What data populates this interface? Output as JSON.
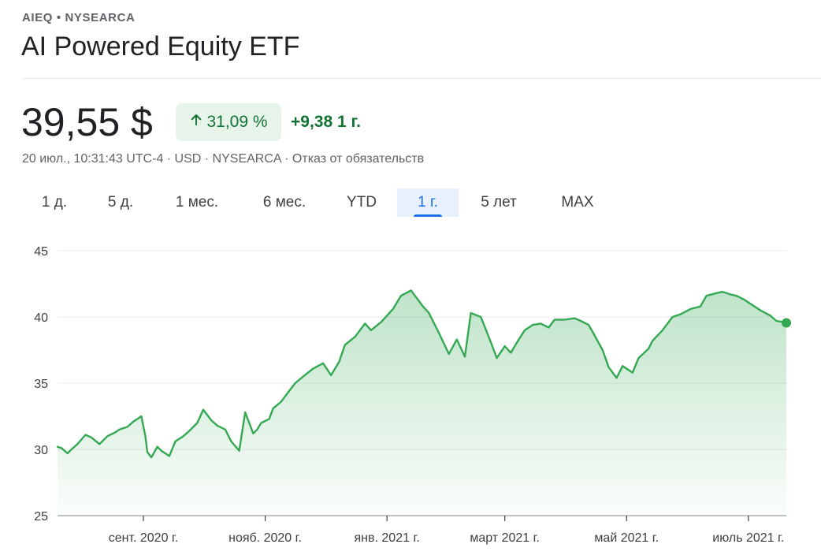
{
  "header": {
    "breadcrumb": "AIEQ • NYSEARCA",
    "title": "AI Powered Equity ETF"
  },
  "quote": {
    "price": "39,55 $",
    "change_percent": "31,09 %",
    "change_abs": "+9,38 1 г.",
    "meta": "20 июл., 10:31:43 UTC-4 · USD · NYSEARCA · Отказ от обязательств"
  },
  "colors": {
    "positive": "#137333",
    "line": "#34a853",
    "active_tab": "#1a73e8"
  },
  "icons": {
    "change_arrow": "arrow-up-icon"
  },
  "tabs": [
    {
      "label": "1 д."
    },
    {
      "label": "5 д."
    },
    {
      "label": "1 мес."
    },
    {
      "label": "6 мес."
    },
    {
      "label": "YTD"
    },
    {
      "label": "1 г.",
      "active": true
    },
    {
      "label": "5 лет"
    },
    {
      "label": "MAX"
    }
  ],
  "chart_data": {
    "type": "area",
    "title": "",
    "xlabel": "",
    "ylabel": "",
    "ylim": [
      25,
      45
    ],
    "y_ticks": [
      25,
      30,
      35,
      40,
      45
    ],
    "x_range": [
      "2020-07-20",
      "2021-07-20"
    ],
    "x_ticks": [
      {
        "date": "2020-09-01",
        "label": "сент. 2020 г."
      },
      {
        "date": "2020-11-01",
        "label": "нояб. 2020 г."
      },
      {
        "date": "2021-01-01",
        "label": "янв. 2021 г."
      },
      {
        "date": "2021-03-01",
        "label": "март 2021 г."
      },
      {
        "date": "2021-05-01",
        "label": "май 2021 г."
      },
      {
        "date": "2021-07-01",
        "label": "июль 2021 г."
      }
    ],
    "grid": true,
    "series": [
      {
        "x": [
          "2020-07-20",
          "2020-07-22",
          "2020-07-25",
          "2020-07-27",
          "2020-07-30",
          "2020-08-03",
          "2020-08-06",
          "2020-08-10",
          "2020-08-14",
          "2020-08-18",
          "2020-08-20",
          "2020-08-24",
          "2020-08-27",
          "2020-08-31",
          "2020-09-02",
          "2020-09-03",
          "2020-09-05",
          "2020-09-08",
          "2020-09-10",
          "2020-09-14",
          "2020-09-17",
          "2020-09-21",
          "2020-09-24",
          "2020-09-28",
          "2020-10-01",
          "2020-10-05",
          "2020-10-08",
          "2020-10-12",
          "2020-10-15",
          "2020-10-19",
          "2020-10-22",
          "2020-10-26",
          "2020-10-28",
          "2020-10-30",
          "2020-11-03",
          "2020-11-05",
          "2020-11-09",
          "2020-11-12",
          "2020-11-16",
          "2020-11-20",
          "2020-11-25",
          "2020-11-30",
          "2020-12-04",
          "2020-12-08",
          "2020-12-11",
          "2020-12-16",
          "2020-12-21",
          "2020-12-24",
          "2020-12-29",
          "2021-01-04",
          "2021-01-08",
          "2021-01-13",
          "2021-01-19",
          "2021-01-22",
          "2021-01-27",
          "2021-02-01",
          "2021-02-05",
          "2021-02-09",
          "2021-02-12",
          "2021-02-17",
          "2021-02-22",
          "2021-02-25",
          "2021-03-01",
          "2021-03-04",
          "2021-03-08",
          "2021-03-11",
          "2021-03-15",
          "2021-03-19",
          "2021-03-23",
          "2021-03-26",
          "2021-03-31",
          "2021-04-05",
          "2021-04-08",
          "2021-04-12",
          "2021-04-15",
          "2021-04-19",
          "2021-04-22",
          "2021-04-26",
          "2021-04-29",
          "2021-05-04",
          "2021-05-07",
          "2021-05-12",
          "2021-05-14",
          "2021-05-19",
          "2021-05-24",
          "2021-05-28",
          "2021-06-02",
          "2021-06-07",
          "2021-06-10",
          "2021-06-15",
          "2021-06-18",
          "2021-06-22",
          "2021-06-25",
          "2021-06-29",
          "2021-07-02",
          "2021-07-07",
          "2021-07-12",
          "2021-07-15",
          "2021-07-19",
          "2021-07-20"
        ],
        "values": [
          30.2,
          30.1,
          29.7,
          30.0,
          30.4,
          31.1,
          30.9,
          30.4,
          31.0,
          31.3,
          31.5,
          31.7,
          32.1,
          32.5,
          31.0,
          29.8,
          29.4,
          30.2,
          29.9,
          29.5,
          30.6,
          31.0,
          31.4,
          32.0,
          33.0,
          32.2,
          31.8,
          31.5,
          30.6,
          29.9,
          32.8,
          31.2,
          31.5,
          32.0,
          32.3,
          33.1,
          33.6,
          34.2,
          35.0,
          35.5,
          36.1,
          36.5,
          35.6,
          36.6,
          37.9,
          38.5,
          39.5,
          39.0,
          39.6,
          40.6,
          41.6,
          42.0,
          40.8,
          40.3,
          38.8,
          37.2,
          38.3,
          37.0,
          40.3,
          40.0,
          38.1,
          36.9,
          37.8,
          37.3,
          38.3,
          39.0,
          39.4,
          39.5,
          39.2,
          39.8,
          39.8,
          39.9,
          39.7,
          39.4,
          38.6,
          37.5,
          36.2,
          35.4,
          36.3,
          35.8,
          36.9,
          37.6,
          38.2,
          39.0,
          40.0,
          40.2,
          40.6,
          40.8,
          41.6,
          41.8,
          41.9,
          41.7,
          41.6,
          41.3,
          41.0,
          40.5,
          40.1,
          39.7,
          39.6,
          39.55
        ]
      }
    ]
  }
}
